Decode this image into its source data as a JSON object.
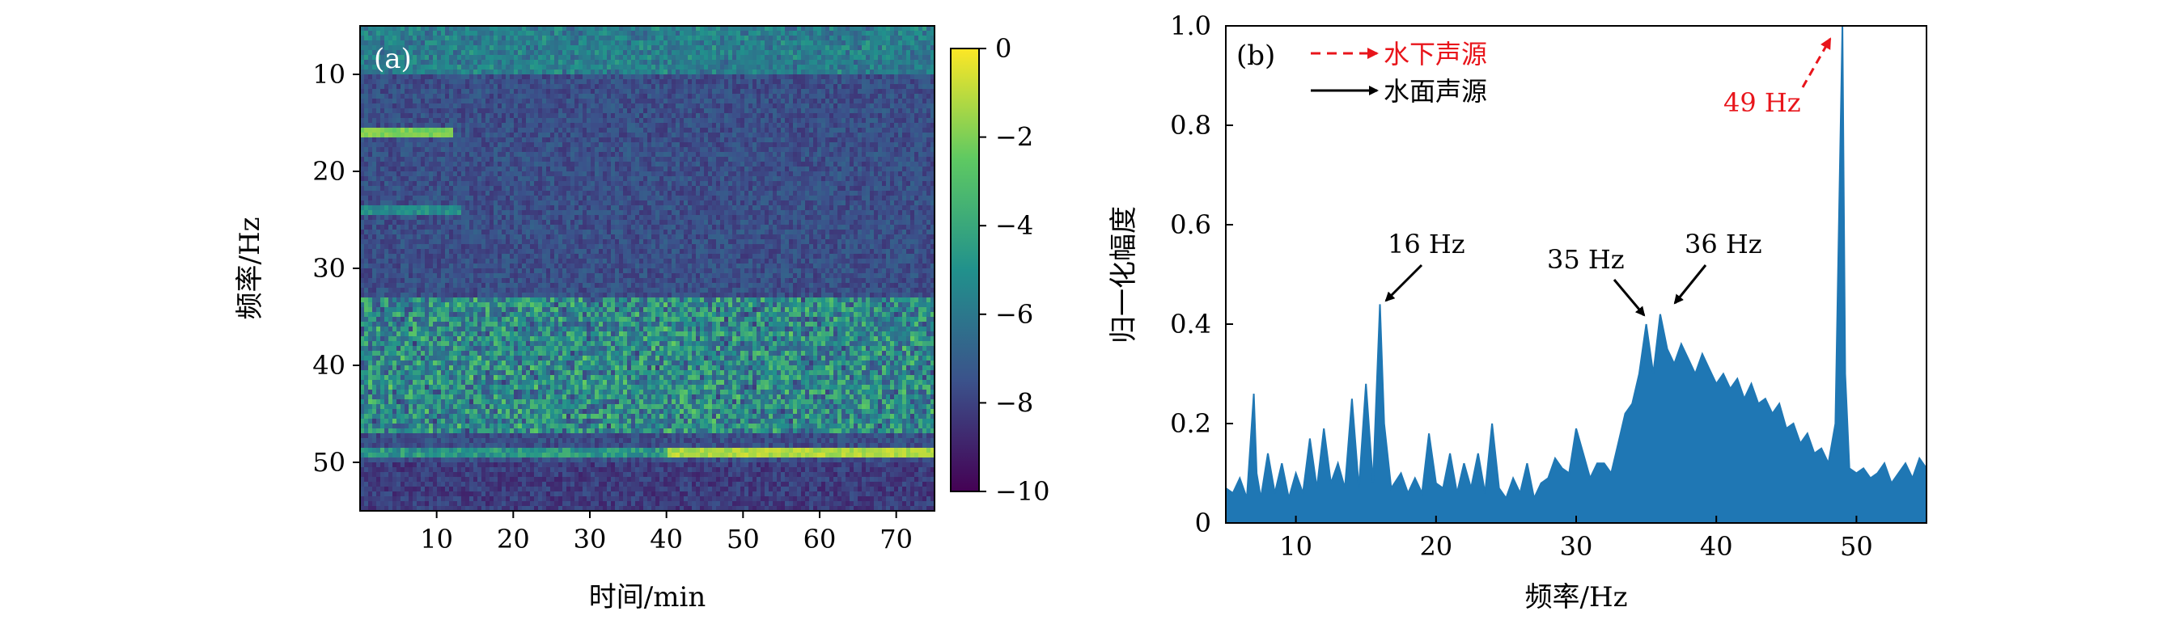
{
  "chart_data": [
    {
      "panel": "(a)",
      "type": "heatmap",
      "xlabel": "时间/min",
      "ylabel": "频率/Hz",
      "xlim": [
        0,
        75
      ],
      "ylim": [
        5,
        55
      ],
      "y_inverted": true,
      "xticks": [
        10,
        20,
        30,
        40,
        50,
        60,
        70
      ],
      "yticks": [
        10,
        20,
        30,
        40,
        50
      ],
      "colorbar": {
        "ticks": [
          0,
          -2,
          -4,
          -6,
          -8,
          -10
        ],
        "range": [
          -10,
          0
        ],
        "colormap": "viridis"
      },
      "features": [
        {
          "freq_hz": 49,
          "description": "persistent horizontal line, strongest after 40 min",
          "level": -1
        },
        {
          "freq_hz": 16,
          "description": "line strong before 12 min",
          "level": -2
        },
        {
          "freq_hz": [
            33,
            46
          ],
          "description": "broadband band",
          "level": -4
        }
      ]
    },
    {
      "panel": "(b)",
      "type": "line",
      "xlabel": "频率/Hz",
      "ylabel": "归一化幅度",
      "xlim": [
        5,
        55
      ],
      "ylim": [
        0,
        1.0
      ],
      "xticks": [
        10,
        20,
        30,
        40,
        50
      ],
      "yticks": [
        0,
        0.2,
        0.4,
        0.6,
        0.8,
        1.0
      ],
      "series": [
        {
          "name": "spectrum",
          "color": "#1f77b4",
          "x": [
            5,
            5.5,
            6,
            6.5,
            7,
            7.2,
            7.5,
            8,
            8.5,
            9,
            9.5,
            10,
            10.5,
            11,
            11.5,
            12,
            12.5,
            13,
            13.5,
            14,
            14.5,
            15,
            15.5,
            16,
            16.3,
            16.8,
            17.5,
            18,
            18.5,
            19,
            19.5,
            20,
            20.5,
            21,
            21.5,
            22,
            22.5,
            23,
            23.5,
            24,
            24.5,
            25,
            25.5,
            26,
            26.5,
            27,
            27.5,
            28,
            28.5,
            29,
            29.5,
            30,
            30.5,
            31,
            31.5,
            32,
            32.5,
            33,
            33.5,
            34,
            34.5,
            35,
            35.5,
            36,
            36.5,
            37,
            37.5,
            38,
            38.5,
            39,
            39.5,
            40,
            40.5,
            41,
            41.5,
            42,
            42.5,
            43,
            43.5,
            44,
            44.5,
            45,
            45.5,
            46,
            46.5,
            47,
            47.5,
            48,
            48.5,
            48.8,
            49,
            49.2,
            49.5,
            50,
            50.5,
            51,
            51.5,
            52,
            52.5,
            53,
            53.5,
            54,
            54.5,
            55
          ],
          "values": [
            0.07,
            0.06,
            0.09,
            0.05,
            0.26,
            0.1,
            0.05,
            0.14,
            0.06,
            0.12,
            0.05,
            0.1,
            0.06,
            0.17,
            0.07,
            0.19,
            0.08,
            0.12,
            0.07,
            0.25,
            0.07,
            0.28,
            0.08,
            0.44,
            0.2,
            0.07,
            0.1,
            0.06,
            0.09,
            0.06,
            0.18,
            0.08,
            0.07,
            0.14,
            0.06,
            0.12,
            0.07,
            0.14,
            0.06,
            0.2,
            0.07,
            0.05,
            0.09,
            0.06,
            0.12,
            0.05,
            0.08,
            0.09,
            0.13,
            0.11,
            0.1,
            0.19,
            0.14,
            0.09,
            0.12,
            0.12,
            0.1,
            0.16,
            0.22,
            0.24,
            0.3,
            0.4,
            0.3,
            0.42,
            0.35,
            0.32,
            0.36,
            0.33,
            0.3,
            0.34,
            0.31,
            0.28,
            0.3,
            0.27,
            0.29,
            0.25,
            0.28,
            0.24,
            0.25,
            0.22,
            0.24,
            0.19,
            0.2,
            0.16,
            0.18,
            0.14,
            0.15,
            0.12,
            0.2,
            0.68,
            1.0,
            0.3,
            0.11,
            0.1,
            0.11,
            0.09,
            0.1,
            0.12,
            0.08,
            0.1,
            0.12,
            0.09,
            0.13,
            0.11
          ]
        }
      ],
      "legend": [
        {
          "label": "水下声源",
          "style": "dashed-arrow",
          "color": "#e8151b"
        },
        {
          "label": "水面声源",
          "style": "solid-arrow",
          "color": "#000000"
        }
      ],
      "annotations": [
        {
          "text": "16 Hz",
          "x": 16,
          "y": 0.44,
          "kind": "surface"
        },
        {
          "text": "35 Hz",
          "x": 35,
          "y": 0.4,
          "kind": "surface"
        },
        {
          "text": "36 Hz",
          "x": 36,
          "y": 0.42,
          "kind": "surface"
        },
        {
          "text": "49 Hz",
          "x": 49,
          "y": 1.0,
          "kind": "underwater"
        }
      ]
    }
  ]
}
